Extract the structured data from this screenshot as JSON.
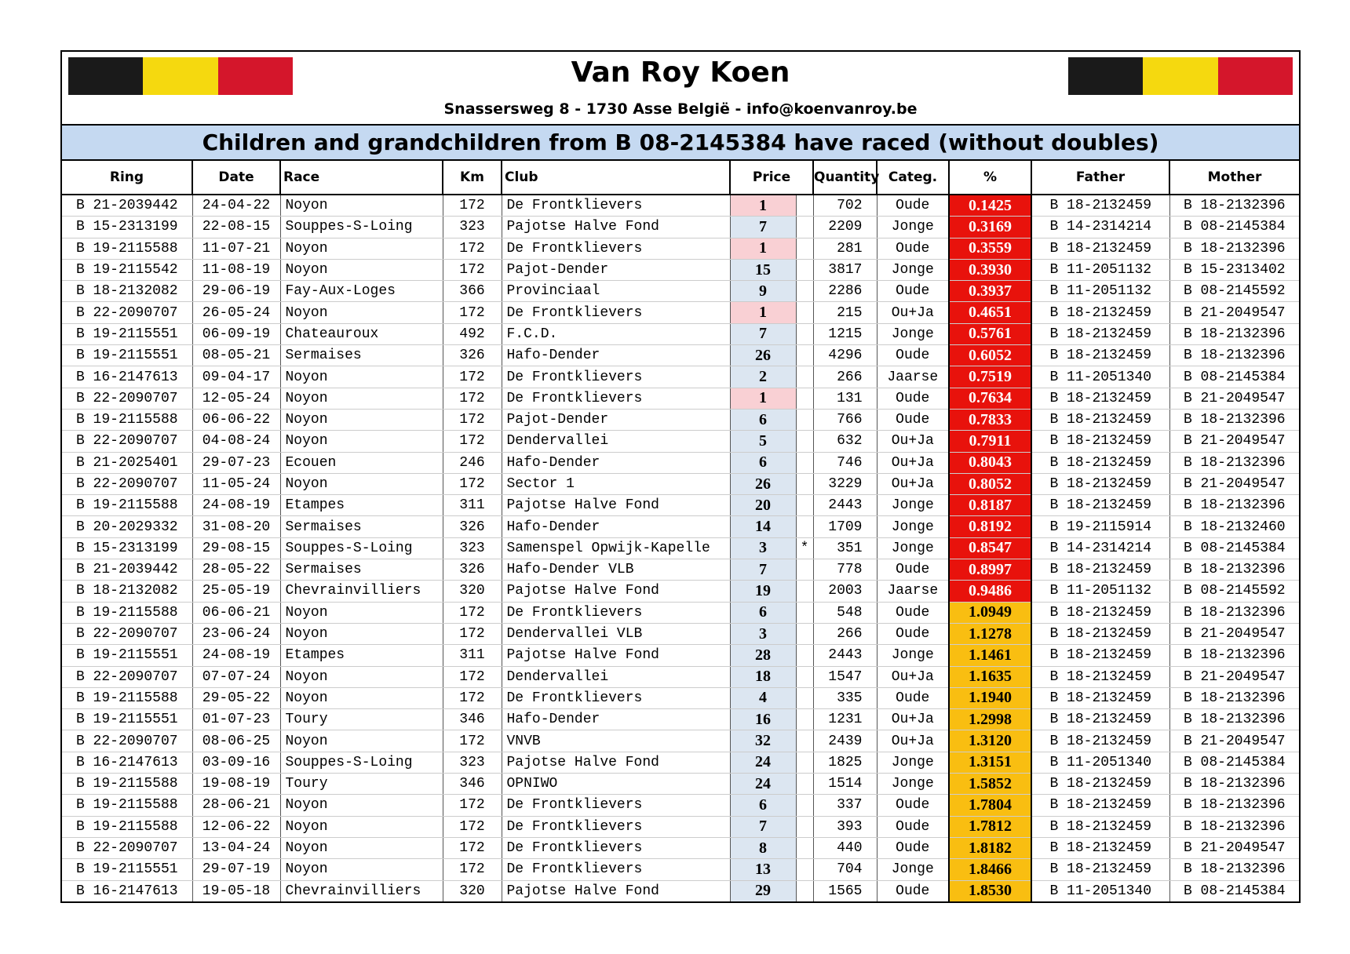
{
  "header": {
    "title": "Van Roy Koen",
    "address": "Snassersweg 8 - 1730 Asse België - info@koenvanroy.be",
    "subtitle": "Children and grandchildren from B 08-2145384 have raced (without doubles)"
  },
  "table": {
    "columns": [
      "Ring",
      "Date",
      "Race",
      "Km",
      "Club",
      "Price",
      "Quantity",
      "Categ.",
      "%",
      "Father",
      "Mother"
    ],
    "rows": [
      {
        "ring": "B 21-2039442",
        "date": "24-04-22",
        "race": "Noyon",
        "km": 172,
        "club": "De Frontklievers",
        "price": 1,
        "quantity": 702,
        "categ": "Oude",
        "pct": "0.1425",
        "father": "B 18-2132459",
        "mother": "B 18-2132396"
      },
      {
        "ring": "B 15-2313199",
        "date": "22-08-15",
        "race": "Souppes-S-Loing",
        "km": 323,
        "club": "Pajotse Halve Fond",
        "price": 7,
        "quantity": 2209,
        "categ": "Jonge",
        "pct": "0.3169",
        "father": "B 14-2314214",
        "mother": "B 08-2145384"
      },
      {
        "ring": "B 19-2115588",
        "date": "11-07-21",
        "race": "Noyon",
        "km": 172,
        "club": "De Frontklievers",
        "price": 1,
        "quantity": 281,
        "categ": "Oude",
        "pct": "0.3559",
        "father": "B 18-2132459",
        "mother": "B 18-2132396"
      },
      {
        "ring": "B 19-2115542",
        "date": "11-08-19",
        "race": "Noyon",
        "km": 172,
        "club": "Pajot-Dender",
        "price": 15,
        "quantity": 3817,
        "categ": "Jonge",
        "pct": "0.3930",
        "father": "B 11-2051132",
        "mother": "B 15-2313402"
      },
      {
        "ring": "B 18-2132082",
        "date": "29-06-19",
        "race": "Fay-Aux-Loges",
        "km": 366,
        "club": "Provinciaal",
        "price": 9,
        "quantity": 2286,
        "categ": "Oude",
        "pct": "0.3937",
        "father": "B 11-2051132",
        "mother": "B 08-2145592"
      },
      {
        "ring": "B 22-2090707",
        "date": "26-05-24",
        "race": "Noyon",
        "km": 172,
        "club": "De Frontklievers",
        "price": 1,
        "quantity": 215,
        "categ": "Ou+Ja",
        "pct": "0.4651",
        "father": "B 18-2132459",
        "mother": "B 21-2049547"
      },
      {
        "ring": "B 19-2115551",
        "date": "06-09-19",
        "race": "Chateauroux",
        "km": 492,
        "club": "F.C.D.",
        "price": 7,
        "quantity": 1215,
        "categ": "Jonge",
        "pct": "0.5761",
        "father": "B 18-2132459",
        "mother": "B 18-2132396"
      },
      {
        "ring": "B 19-2115551",
        "date": "08-05-21",
        "race": "Sermaises",
        "km": 326,
        "club": "Hafo-Dender",
        "price": 26,
        "quantity": 4296,
        "categ": "Oude",
        "pct": "0.6052",
        "father": "B 18-2132459",
        "mother": "B 18-2132396"
      },
      {
        "ring": "B 16-2147613",
        "date": "09-04-17",
        "race": "Noyon",
        "km": 172,
        "club": "De Frontklievers",
        "price": 2,
        "quantity": 266,
        "categ": "Jaarse",
        "pct": "0.7519",
        "father": "B 11-2051340",
        "mother": "B 08-2145384"
      },
      {
        "ring": "B 22-2090707",
        "date": "12-05-24",
        "race": "Noyon",
        "km": 172,
        "club": "De Frontklievers",
        "price": 1,
        "quantity": 131,
        "categ": "Oude",
        "pct": "0.7634",
        "father": "B 18-2132459",
        "mother": "B 21-2049547"
      },
      {
        "ring": "B 19-2115588",
        "date": "06-06-22",
        "race": "Noyon",
        "km": 172,
        "club": "Pajot-Dender",
        "price": 6,
        "quantity": 766,
        "categ": "Oude",
        "pct": "0.7833",
        "father": "B 18-2132459",
        "mother": "B 18-2132396"
      },
      {
        "ring": "B 22-2090707",
        "date": "04-08-24",
        "race": "Noyon",
        "km": 172,
        "club": "Dendervallei",
        "price": 5,
        "quantity": 632,
        "categ": "Ou+Ja",
        "pct": "0.7911",
        "father": "B 18-2132459",
        "mother": "B 21-2049547"
      },
      {
        "ring": "B 21-2025401",
        "date": "29-07-23",
        "race": "Ecouen",
        "km": 246,
        "club": "Hafo-Dender",
        "price": 6,
        "quantity": 746,
        "categ": "Ou+Ja",
        "pct": "0.8043",
        "father": "B 18-2132459",
        "mother": "B 18-2132396"
      },
      {
        "ring": "B 22-2090707",
        "date": "11-05-24",
        "race": "Noyon",
        "km": 172,
        "club": "Sector 1",
        "price": 26,
        "quantity": 3229,
        "categ": "Ou+Ja",
        "pct": "0.8052",
        "father": "B 18-2132459",
        "mother": "B 21-2049547"
      },
      {
        "ring": "B 19-2115588",
        "date": "24-08-19",
        "race": "Etampes",
        "km": 311,
        "club": "Pajotse Halve Fond",
        "price": 20,
        "quantity": 2443,
        "categ": "Jonge",
        "pct": "0.8187",
        "father": "B 18-2132459",
        "mother": "B 18-2132396"
      },
      {
        "ring": "B 20-2029332",
        "date": "31-08-20",
        "race": "Sermaises",
        "km": 326,
        "club": "Hafo-Dender",
        "price": 14,
        "quantity": 1709,
        "categ": "Jonge",
        "pct": "0.8192",
        "father": "B 19-2115914",
        "mother": "B 18-2132460"
      },
      {
        "ring": "B 15-2313199",
        "date": "29-08-15",
        "race": "Souppes-S-Loing",
        "km": 323,
        "club": "Samenspel Opwijk-Kapelle",
        "price": 3,
        "mark": "*",
        "quantity": 351,
        "categ": "Jonge",
        "pct": "0.8547",
        "father": "B 14-2314214",
        "mother": "B 08-2145384"
      },
      {
        "ring": "B 21-2039442",
        "date": "28-05-22",
        "race": "Sermaises",
        "km": 326,
        "club": "Hafo-Dender VLB",
        "price": 7,
        "quantity": 778,
        "categ": "Oude",
        "pct": "0.8997",
        "father": "B 18-2132459",
        "mother": "B 18-2132396"
      },
      {
        "ring": "B 18-2132082",
        "date": "25-05-19",
        "race": "Chevrainvilliers",
        "km": 320,
        "club": "Pajotse Halve Fond",
        "price": 19,
        "quantity": 2003,
        "categ": "Jaarse",
        "pct": "0.9486",
        "father": "B 11-2051132",
        "mother": "B 08-2145592"
      },
      {
        "ring": "B 19-2115588",
        "date": "06-06-21",
        "race": "Noyon",
        "km": 172,
        "club": "De Frontklievers",
        "price": 6,
        "quantity": 548,
        "categ": "Oude",
        "pct": "1.0949",
        "father": "B 18-2132459",
        "mother": "B 18-2132396"
      },
      {
        "ring": "B 22-2090707",
        "date": "23-06-24",
        "race": "Noyon",
        "km": 172,
        "club": "Dendervallei VLB",
        "price": 3,
        "quantity": 266,
        "categ": "Oude",
        "pct": "1.1278",
        "father": "B 18-2132459",
        "mother": "B 21-2049547"
      },
      {
        "ring": "B 19-2115551",
        "date": "24-08-19",
        "race": "Etampes",
        "km": 311,
        "club": "Pajotse Halve Fond",
        "price": 28,
        "quantity": 2443,
        "categ": "Jonge",
        "pct": "1.1461",
        "father": "B 18-2132459",
        "mother": "B 18-2132396"
      },
      {
        "ring": "B 22-2090707",
        "date": "07-07-24",
        "race": "Noyon",
        "km": 172,
        "club": "Dendervallei",
        "price": 18,
        "quantity": 1547,
        "categ": "Ou+Ja",
        "pct": "1.1635",
        "father": "B 18-2132459",
        "mother": "B 21-2049547"
      },
      {
        "ring": "B 19-2115588",
        "date": "29-05-22",
        "race": "Noyon",
        "km": 172,
        "club": "De Frontklievers",
        "price": 4,
        "quantity": 335,
        "categ": "Oude",
        "pct": "1.1940",
        "father": "B 18-2132459",
        "mother": "B 18-2132396"
      },
      {
        "ring": "B 19-2115551",
        "date": "01-07-23",
        "race": "Toury",
        "km": 346,
        "club": "Hafo-Dender",
        "price": 16,
        "quantity": 1231,
        "categ": "Ou+Ja",
        "pct": "1.2998",
        "father": "B 18-2132459",
        "mother": "B 18-2132396"
      },
      {
        "ring": "B 22-2090707",
        "date": "08-06-25",
        "race": "Noyon",
        "km": 172,
        "club": "VNVB",
        "price": 32,
        "quantity": 2439,
        "categ": "Ou+Ja",
        "pct": "1.3120",
        "father": "B 18-2132459",
        "mother": "B 21-2049547"
      },
      {
        "ring": "B 16-2147613",
        "date": "03-09-16",
        "race": "Souppes-S-Loing",
        "km": 323,
        "club": "Pajotse Halve Fond",
        "price": 24,
        "quantity": 1825,
        "categ": "Jonge",
        "pct": "1.3151",
        "father": "B 11-2051340",
        "mother": "B 08-2145384"
      },
      {
        "ring": "B 19-2115588",
        "date": "19-08-19",
        "race": "Toury",
        "km": 346,
        "club": "OPNIWO",
        "price": 24,
        "quantity": 1514,
        "categ": "Jonge",
        "pct": "1.5852",
        "father": "B 18-2132459",
        "mother": "B 18-2132396"
      },
      {
        "ring": "B 19-2115588",
        "date": "28-06-21",
        "race": "Noyon",
        "km": 172,
        "club": "De Frontklievers",
        "price": 6,
        "quantity": 337,
        "categ": "Oude",
        "pct": "1.7804",
        "father": "B 18-2132459",
        "mother": "B 18-2132396"
      },
      {
        "ring": "B 19-2115588",
        "date": "12-06-22",
        "race": "Noyon",
        "km": 172,
        "club": "De Frontklievers",
        "price": 7,
        "quantity": 393,
        "categ": "Oude",
        "pct": "1.7812",
        "father": "B 18-2132459",
        "mother": "B 18-2132396"
      },
      {
        "ring": "B 22-2090707",
        "date": "13-04-24",
        "race": "Noyon",
        "km": 172,
        "club": "De Frontklievers",
        "price": 8,
        "quantity": 440,
        "categ": "Oude",
        "pct": "1.8182",
        "father": "B 18-2132459",
        "mother": "B 21-2049547"
      },
      {
        "ring": "B 19-2115551",
        "date": "29-07-19",
        "race": "Noyon",
        "km": 172,
        "club": "De Frontklievers",
        "price": 13,
        "quantity": 704,
        "categ": "Jonge",
        "pct": "1.8466",
        "father": "B 18-2132459",
        "mother": "B 18-2132396"
      },
      {
        "ring": "B 16-2147613",
        "date": "19-05-18",
        "race": "Chevrainvilliers",
        "km": 320,
        "club": "Pajotse Halve Fond",
        "price": 29,
        "quantity": 1565,
        "categ": "Oude",
        "pct": "1.8530",
        "father": "B 11-2051340",
        "mother": "B 08-2145384"
      }
    ]
  }
}
